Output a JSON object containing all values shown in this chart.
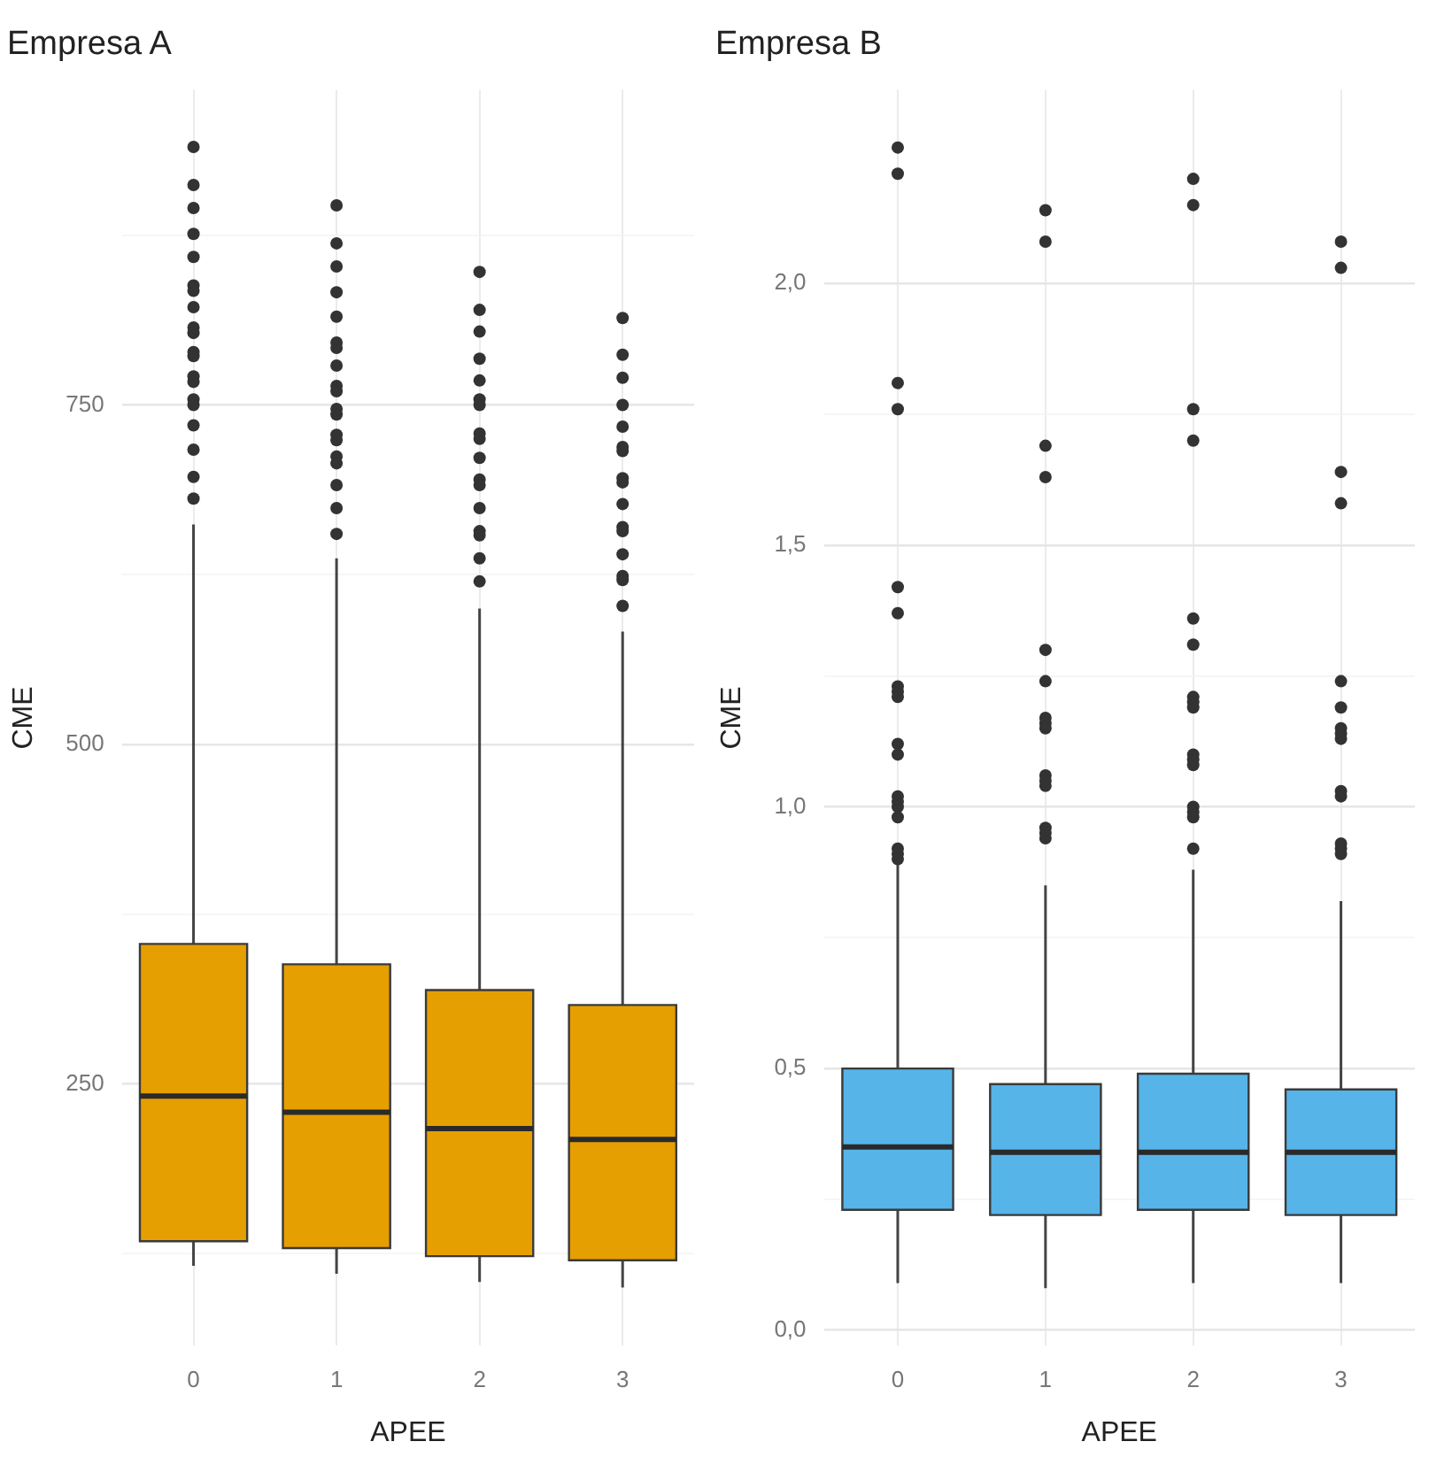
{
  "chart_data": [
    {
      "type": "box",
      "title": "Empresa A",
      "xlabel": "APEE",
      "ylabel": "CME",
      "categories": [
        "0",
        "1",
        "2",
        "3"
      ],
      "color": "#e69f00",
      "grid": true,
      "ylim": [
        57,
        982
      ],
      "yticks": [
        {
          "value": 125,
          "label": null
        },
        250,
        {
          "value": 375,
          "label": null
        },
        500,
        {
          "value": 625,
          "label": null
        },
        750,
        {
          "value": 875,
          "label": null
        }
      ],
      "boxes": [
        {
          "low": 116,
          "q1": 134,
          "median": 241,
          "q3": 353,
          "high": 662,
          "outliers": [
            940,
            912,
            895,
            876,
            859,
            838,
            834,
            822,
            807,
            803,
            789,
            786,
            771,
            767,
            754,
            750,
            735,
            717,
            697,
            681
          ]
        },
        {
          "low": 110,
          "q1": 129,
          "median": 229,
          "q3": 338,
          "high": 637,
          "outliers": [
            897,
            869,
            852,
            833,
            815,
            796,
            792,
            779,
            764,
            760,
            747,
            743,
            728,
            724,
            712,
            707,
            691,
            674,
            655
          ]
        },
        {
          "low": 104,
          "q1": 123,
          "median": 217,
          "q3": 319,
          "high": 600,
          "outliers": [
            848,
            820,
            804,
            784,
            768,
            754,
            750,
            729,
            725,
            711,
            695,
            691,
            674,
            657,
            654,
            637,
            620
          ]
        },
        {
          "low": 100,
          "q1": 120,
          "median": 209,
          "q3": 308,
          "high": 583,
          "outliers": [
            814,
            787,
            770,
            750,
            734,
            719,
            716,
            696,
            693,
            677,
            660,
            657,
            640,
            624,
            621,
            602
          ]
        }
      ]
    },
    {
      "type": "box",
      "title": "Empresa B",
      "xlabel": "APEE",
      "ylabel": "CME",
      "categories": [
        "0",
        "1",
        "2",
        "3"
      ],
      "color": "#56b4e9",
      "grid": true,
      "ylim": [
        -0.03,
        2.37
      ],
      "yticks": [
        {
          "value": 0,
          "label": "0,0"
        },
        {
          "value": 0.25,
          "label": null
        },
        {
          "value": 0.5,
          "label": "0,5"
        },
        {
          "value": 0.75,
          "label": null
        },
        {
          "value": 1,
          "label": "1,0"
        },
        {
          "value": 1.25,
          "label": null
        },
        {
          "value": 1.5,
          "label": "1,5"
        },
        {
          "value": 1.75,
          "label": null
        },
        {
          "value": 2,
          "label": "2,0"
        }
      ],
      "boxes": [
        {
          "low": 0.09,
          "q1": 0.23,
          "median": 0.35,
          "q3": 0.5,
          "high": 0.89,
          "outliers": [
            2.26,
            2.21,
            1.81,
            1.76,
            1.42,
            1.37,
            1.23,
            1.22,
            1.21,
            1.12,
            1.1,
            1.02,
            1.01,
            1.0,
            0.98,
            0.92,
            0.91,
            0.9
          ]
        },
        {
          "low": 0.08,
          "q1": 0.22,
          "median": 0.34,
          "q3": 0.47,
          "high": 0.85,
          "outliers": [
            2.14,
            2.08,
            1.69,
            1.63,
            1.3,
            1.24,
            1.17,
            1.16,
            1.15,
            1.06,
            1.05,
            1.04,
            0.96,
            0.95,
            0.94
          ]
        },
        {
          "low": 0.09,
          "q1": 0.23,
          "median": 0.34,
          "q3": 0.49,
          "high": 0.88,
          "outliers": [
            2.2,
            2.15,
            1.76,
            1.7,
            1.36,
            1.31,
            1.21,
            1.2,
            1.19,
            1.1,
            1.09,
            1.08,
            1.0,
            0.99,
            0.98,
            0.92
          ]
        },
        {
          "low": 0.09,
          "q1": 0.22,
          "median": 0.34,
          "q3": 0.46,
          "high": 0.82,
          "outliers": [
            2.08,
            2.03,
            1.64,
            1.58,
            1.24,
            1.19,
            1.15,
            1.14,
            1.13,
            1.03,
            1.02,
            0.93,
            0.92,
            0.91
          ]
        }
      ]
    }
  ]
}
